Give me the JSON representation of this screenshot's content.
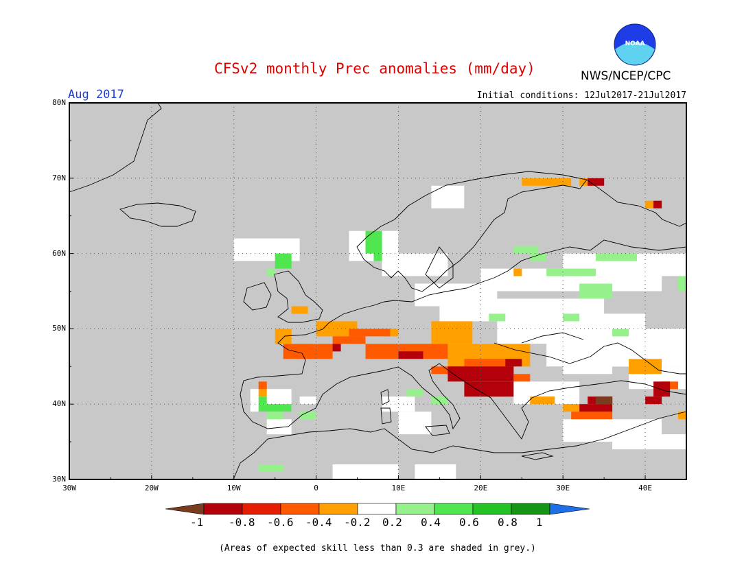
{
  "title": "CFSv2 monthly Prec anomalies (mm/day)",
  "agency": "NWS/NCEP/CPC",
  "logo_text": "NOAA",
  "month_label": "Aug 2017",
  "initial_conditions": "Initial conditions: 12Jul2017-21Jul2017",
  "footnote": "(Areas of expected skill less than 0.3 are shaded in grey.)",
  "map": {
    "lon_ticks": [
      "30W",
      "20W",
      "10W",
      "0",
      "10E",
      "20E",
      "30E",
      "40E"
    ],
    "lat_ticks": [
      "80N",
      "70N",
      "60N",
      "50N",
      "40N",
      "30N"
    ],
    "extent": {
      "lon": [
        -30,
        45
      ],
      "lat": [
        30,
        80
      ]
    },
    "grid": "dotted",
    "no_skill_color": "#c8c8c8"
  },
  "colorbar": {
    "labels": [
      "-1",
      "-0.8",
      "-0.6",
      "-0.4",
      "-0.2",
      "0.2",
      "0.4",
      "0.6",
      "0.8",
      "1"
    ],
    "colors": [
      "#7a3c1e",
      "#b4000a",
      "#e61e00",
      "#ff5a00",
      "#ffa000",
      "#ffffff",
      "#96f08c",
      "#50e650",
      "#23c323",
      "#149614",
      "#1e6ee6"
    ]
  },
  "colors": {
    "brown": "#7a3c1e",
    "dark_red": "#b4000a",
    "red": "#e61e00",
    "orange_red": "#ff5a00",
    "orange": "#ffa000",
    "white": "#ffffff",
    "light_green": "#96f08c",
    "green": "#50e650",
    "title_red": "#e00000",
    "label_blue": "#1e3cdc"
  }
}
